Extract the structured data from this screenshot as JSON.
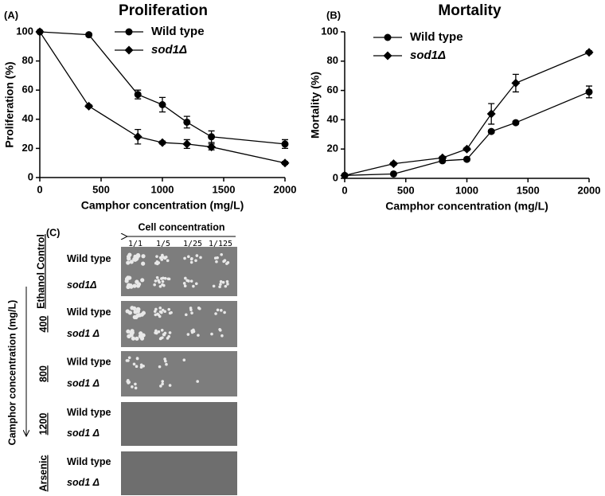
{
  "chart_data": [
    {
      "type": "line",
      "panel_label": "(A)",
      "title": "Proliferation",
      "x_label": "Camphor concentration (mg/L)",
      "y_label": "Proliferation (%)",
      "x": [
        0,
        400,
        800,
        1000,
        1200,
        1400,
        2000
      ],
      "series": [
        {
          "name": "Wild type",
          "marker": "circle",
          "color": "#000000",
          "values": [
            100,
            98,
            57,
            50,
            38,
            28,
            23
          ],
          "errors": [
            0,
            1,
            3,
            5,
            4,
            4,
            3
          ]
        },
        {
          "name": "sod1Δ",
          "marker": "diamond",
          "color": "#000000",
          "values": [
            100,
            49,
            28,
            24,
            23,
            21,
            10
          ],
          "errors": [
            0,
            1,
            5,
            1,
            3,
            2,
            1
          ]
        }
      ],
      "xlim": [
        0,
        2000
      ],
      "xticks": [
        0,
        500,
        1000,
        1500,
        2000
      ],
      "ylim": [
        0,
        100
      ],
      "yticks": [
        0,
        20,
        40,
        60,
        80,
        100
      ]
    },
    {
      "type": "line",
      "panel_label": "(B)",
      "title": "Mortality",
      "x_label": "Camphor concentration (mg/L)",
      "y_label": "Mortality (%)",
      "x": [
        0,
        400,
        800,
        1000,
        1200,
        1400,
        2000
      ],
      "series": [
        {
          "name": "Wild type",
          "marker": "circle",
          "color": "#000000",
          "values": [
            2,
            3,
            12,
            13,
            32,
            38,
            59
          ],
          "errors": [
            0,
            0,
            1,
            1,
            1,
            1,
            4
          ]
        },
        {
          "name": "sod1Δ",
          "marker": "diamond",
          "color": "#000000",
          "values": [
            2,
            10,
            14,
            20,
            44,
            65,
            86
          ],
          "errors": [
            0,
            1,
            1,
            1,
            7,
            6,
            1
          ]
        }
      ],
      "xlim": [
        0,
        2000
      ],
      "xticks": [
        0,
        500,
        1000,
        1500,
        2000
      ],
      "ylim": [
        0,
        100
      ],
      "yticks": [
        0,
        20,
        40,
        60,
        80,
        100
      ]
    }
  ],
  "panel_c": {
    "label": "(C)",
    "header": "Cell concentration",
    "dilutions": [
      "1/1",
      "1/5",
      "1/25",
      "1/125"
    ],
    "y_axis_label": "Camphor concentration (mg/L)",
    "groups": [
      {
        "label": "Ethanol Control",
        "rows": [
          "Wild type",
          "sod1Δ"
        ]
      },
      {
        "label": "400",
        "rows": [
          "Wild type",
          "sod1 Δ"
        ]
      },
      {
        "label": "800",
        "rows": [
          "Wild type",
          "sod1 Δ"
        ]
      },
      {
        "label": "1200",
        "rows": [
          "Wild type",
          "sod1 Δ"
        ]
      },
      {
        "label": "Arsenic",
        "rows": [
          "Wild type",
          "sod1 Δ"
        ]
      }
    ]
  }
}
